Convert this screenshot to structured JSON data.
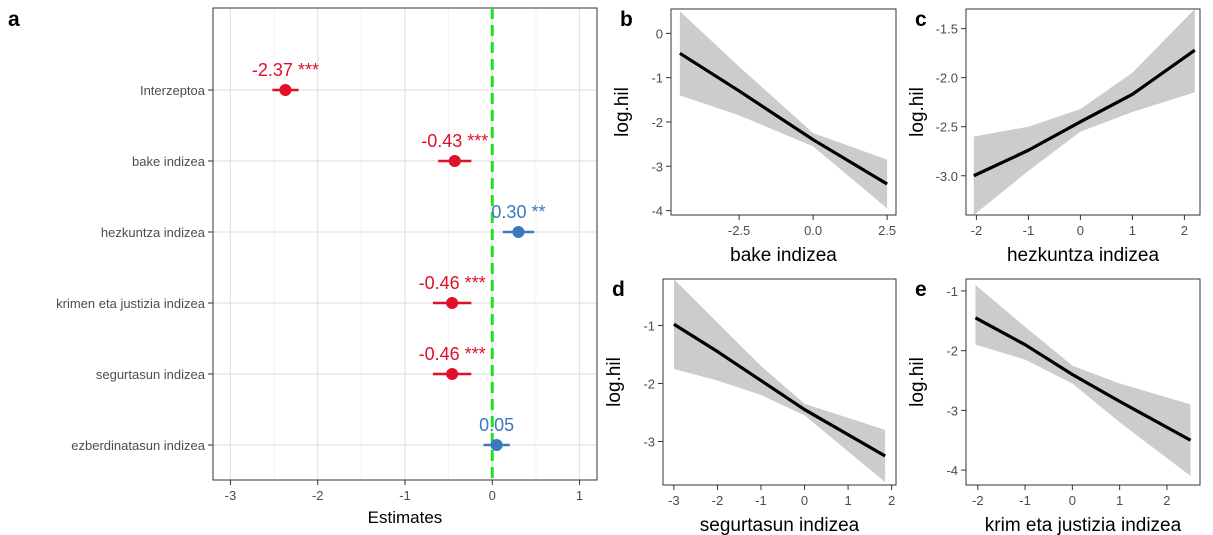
{
  "chart_data": [
    {
      "type": "scatter",
      "panel_letter": "a",
      "xlabel": "Estimates",
      "xlim": [
        -3.2,
        1.2
      ],
      "xticks": [
        -3,
        -2,
        -1,
        0,
        1
      ],
      "reference_line_x": 0,
      "grid": true,
      "rows": [
        {
          "term": "Interzeptoa",
          "estimate": -2.37,
          "ci": [
            -2.52,
            -2.22
          ],
          "label": "-2.37 ***",
          "color": "#e0102a"
        },
        {
          "term": "bake indizea",
          "estimate": -0.43,
          "ci": [
            -0.62,
            -0.24
          ],
          "label": "-0.43 ***",
          "color": "#e0102a"
        },
        {
          "term": "hezkuntza indizea",
          "estimate": 0.3,
          "ci": [
            0.12,
            0.48
          ],
          "label": "0.30 **",
          "color": "#3a78c0"
        },
        {
          "term": "krimen eta justizia indizea",
          "estimate": -0.46,
          "ci": [
            -0.68,
            -0.24
          ],
          "label": "-0.46 ***",
          "color": "#e0102a"
        },
        {
          "term": "segurtasun indizea",
          "estimate": -0.46,
          "ci": [
            -0.68,
            -0.24
          ],
          "label": "-0.46 ***",
          "color": "#e0102a"
        },
        {
          "term": "ezberdinatasun indizea",
          "estimate": 0.05,
          "ci": [
            -0.1,
            0.2
          ],
          "label": "0.05",
          "color": "#3a78c0"
        }
      ]
    },
    {
      "type": "line",
      "panel_letter": "b",
      "xlabel": "bake indizea",
      "ylabel": "log.hil",
      "xlim": [
        -4.8,
        2.8
      ],
      "ylim": [
        -4.1,
        0.55
      ],
      "xticks": [
        "-2.5",
        "0.0",
        "2.5"
      ],
      "yticks": [
        "0",
        "-1",
        "-2",
        "-3",
        "-4"
      ],
      "x": [
        -4.5,
        -2.5,
        0.0,
        2.5
      ],
      "y": [
        -0.45,
        -1.3,
        -2.4,
        -3.4
      ],
      "ci_lower": [
        -1.4,
        -1.85,
        -2.55,
        -3.95
      ],
      "ci_upper": [
        0.5,
        -0.75,
        -2.25,
        -2.85
      ]
    },
    {
      "type": "line",
      "panel_letter": "c",
      "xlabel": "hezkuntza indizea",
      "ylabel": "log.hil",
      "xlim": [
        -2.2,
        2.3
      ],
      "ylim": [
        -3.4,
        -1.3
      ],
      "xticks": [
        "-2",
        "-1",
        "0",
        "1",
        "2"
      ],
      "yticks": [
        "-1.5",
        "-2.0",
        "-2.5",
        "-3.0"
      ],
      "x": [
        -2.05,
        -1,
        0,
        1,
        2.2
      ],
      "y": [
        -3.0,
        -2.74,
        -2.45,
        -2.17,
        -1.72
      ],
      "ci_lower": [
        -3.4,
        -2.95,
        -2.55,
        -2.35,
        -2.15
      ],
      "ci_upper": [
        -2.6,
        -2.5,
        -2.32,
        -1.95,
        -1.3
      ]
    },
    {
      "type": "line",
      "panel_letter": "d",
      "xlabel": "segurtasun indizea",
      "ylabel": "log.hil",
      "xlim": [
        -3.25,
        2.1
      ],
      "ylim": [
        -3.75,
        -0.2
      ],
      "xticks": [
        "-3",
        "-2",
        "-1",
        "0",
        "1",
        "2"
      ],
      "yticks": [
        "-1",
        "-2",
        "-3"
      ],
      "x": [
        -3.0,
        -2,
        -1,
        0,
        1.85
      ],
      "y": [
        -0.98,
        -1.45,
        -1.95,
        -2.45,
        -3.25
      ],
      "ci_lower": [
        -1.75,
        -1.95,
        -2.2,
        -2.55,
        -3.7
      ],
      "ci_upper": [
        -0.2,
        -0.95,
        -1.7,
        -2.35,
        -2.8
      ]
    },
    {
      "type": "line",
      "panel_letter": "e",
      "xlabel": "krim eta justizia indizea",
      "ylabel": "log.hil",
      "xlim": [
        -2.25,
        2.7
      ],
      "ylim": [
        -4.25,
        -0.8
      ],
      "xticks": [
        "-2",
        "-1",
        "0",
        "1",
        "2"
      ],
      "yticks": [
        "-1",
        "-2",
        "-3",
        "-4"
      ],
      "x": [
        -2.05,
        -1,
        0,
        1,
        2.5
      ],
      "y": [
        -1.45,
        -1.9,
        -2.4,
        -2.85,
        -3.5
      ],
      "ci_lower": [
        -1.9,
        -2.15,
        -2.55,
        -3.2,
        -4.1
      ],
      "ci_upper": [
        -0.9,
        -1.6,
        -2.25,
        -2.55,
        -2.9
      ]
    }
  ]
}
